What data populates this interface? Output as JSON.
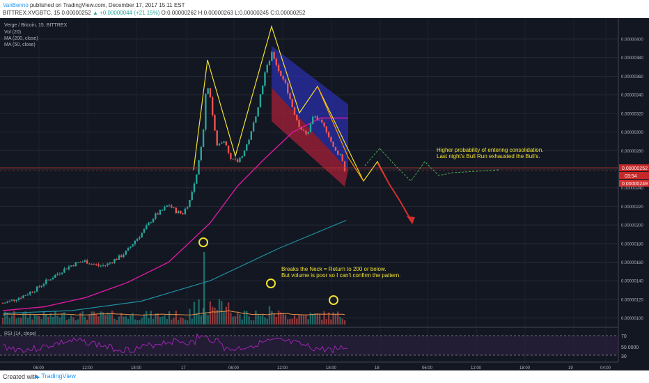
{
  "header": {
    "author": "VanBenno",
    "published": "published on TradingView.com, December 17, 2017 15:11 EST",
    "symbol_line": "BITTREX:XVGBTC, 15  0.00000252",
    "change": "▲ +0.00000044 (+21.15%)",
    "ohlc": "O:0.00000262 H:0.00000263 L:0.00000245 C:0.00000252"
  },
  "legend": {
    "title": "Verge / Bitcoin, 15, BITTREX",
    "vol": "Vol (20)",
    "ma200": "MA (200, close)",
    "ma50": "MA (50, close)"
  },
  "price_tags": {
    "last": "0.00000252",
    "countdown": "03:54",
    "lower": "0.00000249"
  },
  "annotations": {
    "consolidation_1": "Higher probability of entering consolidation.",
    "consolidation_2": "Last night's Bull Run exhausted the Bull's.",
    "neck_1": "Breaks the Neck = Return to 200 or below.",
    "neck_2": "But volume is poor so I can't confirm the pattern."
  },
  "rsi": {
    "label": "RSI (14, close)",
    "upper": "70",
    "mid": "50.0000",
    "lower": "30"
  },
  "footer": {
    "created": "Created with",
    "brand": "TradingView"
  },
  "colors": {
    "bg": "#131722",
    "up": "#26a69a",
    "down": "#ef5350",
    "ma50": "#d81b9e",
    "ma200": "#1f8fa0",
    "pattern": "#f0e130"
  },
  "chart_data": {
    "type": "candlestick",
    "title": "Verge / Bitcoin, 15, BITTREX",
    "y_ticks": [
      "0.00000400",
      "0.00000380",
      "0.00000360",
      "0.00000340",
      "0.00000320",
      "0.00000300",
      "0.00000280",
      "0.00000260",
      "0.00000240",
      "0.00000220",
      "0.00000200",
      "0.00000180",
      "0.00000160",
      "0.00000140",
      "0.00000120",
      "0.00000100"
    ],
    "x_ticks": [
      "06:00",
      "12:00",
      "18:00",
      "17",
      "06:00",
      "12:00",
      "18:00",
      "18",
      "06:00",
      "12:00",
      "18:00",
      "19",
      "04:00"
    ],
    "ylim": [
      9.3e-07,
      4.12e-06
    ],
    "close_path": [
      [
        0,
        1.16e-06
      ],
      [
        10,
        1.18e-06
      ],
      [
        20,
        1.21e-06
      ],
      [
        30,
        1.24e-06
      ],
      [
        40,
        1.28e-06
      ],
      [
        50,
        1.32e-06
      ],
      [
        60,
        1.38e-06
      ],
      [
        70,
        1.43e-06
      ],
      [
        80,
        1.48e-06
      ],
      [
        90,
        1.53e-06
      ],
      [
        100,
        1.57e-06
      ],
      [
        110,
        1.6e-06
      ],
      [
        120,
        1.61e-06
      ],
      [
        130,
        1.58e-06
      ],
      [
        140,
        1.56e-06
      ],
      [
        150,
        1.57e-06
      ],
      [
        160,
        1.62e-06
      ],
      [
        170,
        1.66e-06
      ],
      [
        180,
        1.72e-06
      ],
      [
        190,
        1.82e-06
      ],
      [
        200,
        1.9e-06
      ],
      [
        210,
        2e-06
      ],
      [
        220,
        2.1e-06
      ],
      [
        230,
        2.15e-06
      ],
      [
        240,
        2.22e-06
      ],
      [
        250,
        2.15e-06
      ],
      [
        260,
        2.12e-06
      ],
      [
        270,
        2.25e-06
      ],
      [
        280,
        2.5e-06
      ],
      [
        290,
        3e-06
      ],
      [
        295,
        3.55e-06
      ],
      [
        300,
        3.4e-06
      ],
      [
        305,
        3.1e-06
      ],
      [
        310,
        2.85e-06
      ],
      [
        320,
        2.92e-06
      ],
      [
        330,
        2.7e-06
      ],
      [
        340,
        2.68e-06
      ],
      [
        350,
        2.8e-06
      ],
      [
        360,
        3e-06
      ],
      [
        370,
        3.3e-06
      ],
      [
        380,
        3.65e-06
      ],
      [
        390,
        3.85e-06
      ],
      [
        400,
        3.65e-06
      ],
      [
        410,
        3.5e-06
      ],
      [
        420,
        3.25e-06
      ],
      [
        430,
        3.05e-06
      ],
      [
        440,
        2.96e-06
      ],
      [
        450,
        3.18e-06
      ],
      [
        460,
        3.1e-06
      ],
      [
        470,
        3e-06
      ],
      [
        480,
        2.8e-06
      ],
      [
        490,
        2.75e-06
      ],
      [
        497,
        2.52e-06
      ]
    ],
    "ma50": [
      [
        0,
        1.08e-06
      ],
      [
        60,
        1.12e-06
      ],
      [
        120,
        1.22e-06
      ],
      [
        180,
        1.38e-06
      ],
      [
        240,
        1.6e-06
      ],
      [
        300,
        2.02e-06
      ],
      [
        340,
        2.42e-06
      ],
      [
        380,
        2.72e-06
      ],
      [
        420,
        3e-06
      ],
      [
        460,
        3.15e-06
      ],
      [
        500,
        3.15e-06
      ]
    ],
    "ma200": [
      [
        0,
        1.05e-06
      ],
      [
        100,
        1.08e-06
      ],
      [
        200,
        1.18e-06
      ],
      [
        300,
        1.4e-06
      ],
      [
        400,
        1.75e-06
      ],
      [
        497,
        2.05e-06
      ]
    ]
  }
}
